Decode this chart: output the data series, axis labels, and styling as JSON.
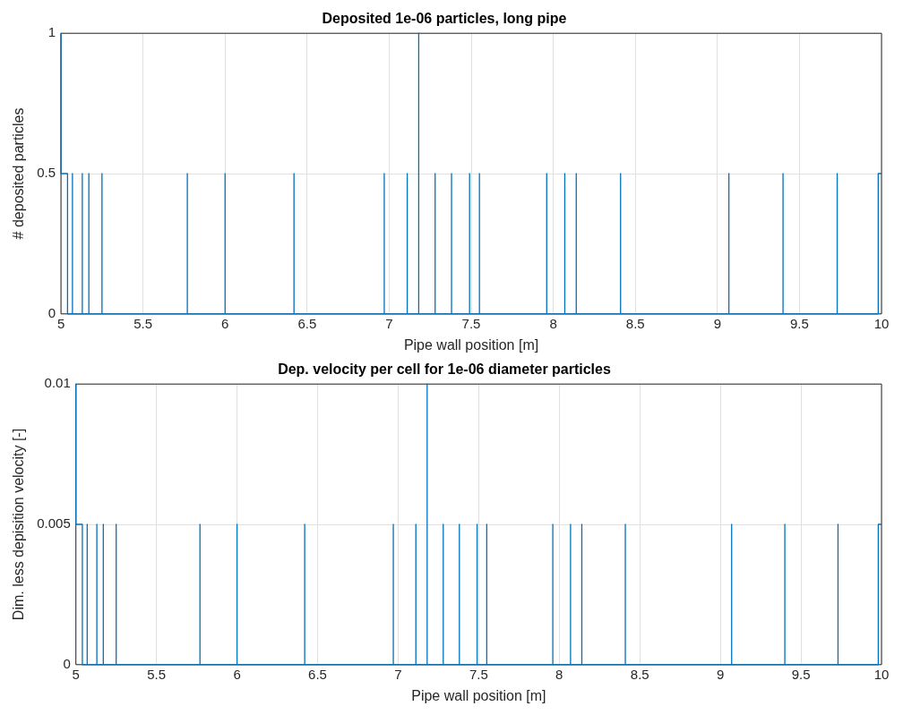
{
  "chart_data": [
    {
      "type": "line",
      "title": "Deposited 1e-06 particles, long pipe",
      "xlabel": "Pipe wall position [m]",
      "ylabel": "# deposited particles",
      "xlim": [
        5,
        10
      ],
      "xticks": [
        5,
        5.5,
        6,
        6.5,
        7,
        7.5,
        8,
        8.5,
        9,
        9.5,
        10
      ],
      "ylim": [
        0,
        1
      ],
      "yticks": [
        0,
        0.5,
        1
      ],
      "grid": true,
      "marker": "none",
      "series": [
        {
          "color": "#0072bd",
          "x": [
            5,
            5,
            5.04,
            5.04,
            5.07,
            5.07,
            5.07,
            5.13,
            5.13,
            5.13,
            5.17,
            5.17,
            5.17,
            5.25,
            5.25,
            5.25,
            5.77,
            5.77,
            5.77,
            6,
            6,
            6,
            6.42,
            6.42,
            6.42,
            6.97,
            6.97,
            6.97,
            7.11,
            7.11,
            7.11,
            7.18,
            7.18,
            7.18,
            7.28,
            7.28,
            7.28,
            7.38,
            7.38,
            7.38,
            7.49,
            7.49,
            7.49,
            7.55,
            7.55,
            7.55,
            7.96,
            7.96,
            7.96,
            8.07,
            8.07,
            8.07,
            8.14,
            8.14,
            8.14,
            8.41,
            8.41,
            8.41,
            9.07,
            9.07,
            9.07,
            9.4,
            9.4,
            9.4,
            9.73,
            9.73,
            9.73,
            9.98,
            9.98,
            10
          ],
          "values": [
            1,
            0.5,
            0.5,
            0,
            0,
            0.5,
            0,
            0,
            0.5,
            0,
            0,
            0.5,
            0,
            0,
            0.5,
            0,
            0,
            0.5,
            0,
            0,
            0.5,
            0,
            0,
            0.5,
            0,
            0,
            0.5,
            0,
            0,
            0.5,
            0,
            0,
            1,
            0,
            0,
            0.5,
            0,
            0,
            0.5,
            0,
            0,
            0.5,
            0,
            0,
            0.5,
            0,
            0,
            0.5,
            0,
            0,
            0.5,
            0,
            0,
            0.5,
            0,
            0,
            0.5,
            0,
            0,
            0.5,
            0,
            0,
            0.5,
            0,
            0,
            0.5,
            0,
            0,
            0.5,
            0.5
          ]
        }
      ]
    },
    {
      "type": "line",
      "title": "Dep. velocity per cell for 1e-06 diameter particles",
      "xlabel": "Pipe wall position [m]",
      "ylabel": "Dim. less depisition velocity [-]",
      "xlim": [
        5,
        10
      ],
      "xticks": [
        5,
        5.5,
        6,
        6.5,
        7,
        7.5,
        8,
        8.5,
        9,
        9.5,
        10
      ],
      "ylim": [
        0,
        0.01
      ],
      "yticks": [
        0,
        0.005,
        0.01
      ],
      "grid": true,
      "marker": "none",
      "series": [
        {
          "color": "#0072bd",
          "x": [
            5,
            5,
            5.04,
            5.04,
            5.07,
            5.07,
            5.07,
            5.13,
            5.13,
            5.13,
            5.17,
            5.17,
            5.17,
            5.25,
            5.25,
            5.25,
            5.77,
            5.77,
            5.77,
            6,
            6,
            6,
            6.42,
            6.42,
            6.42,
            6.97,
            6.97,
            6.97,
            7.11,
            7.11,
            7.11,
            7.18,
            7.18,
            7.18,
            7.28,
            7.28,
            7.28,
            7.38,
            7.38,
            7.38,
            7.49,
            7.49,
            7.49,
            7.55,
            7.55,
            7.55,
            7.96,
            7.96,
            7.96,
            8.07,
            8.07,
            8.07,
            8.14,
            8.14,
            8.14,
            8.41,
            8.41,
            8.41,
            9.07,
            9.07,
            9.07,
            9.4,
            9.4,
            9.4,
            9.73,
            9.73,
            9.73,
            9.98,
            9.98,
            10
          ],
          "values": [
            0.01,
            0.005,
            0.005,
            0,
            0,
            0.005,
            0,
            0,
            0.005,
            0,
            0,
            0.005,
            0,
            0,
            0.005,
            0,
            0,
            0.005,
            0,
            0,
            0.005,
            0,
            0,
            0.005,
            0,
            0,
            0.005,
            0,
            0,
            0.005,
            0,
            0,
            0.01,
            0,
            0,
            0.005,
            0,
            0,
            0.005,
            0,
            0,
            0.005,
            0,
            0,
            0.005,
            0,
            0,
            0.005,
            0,
            0,
            0.005,
            0,
            0,
            0.005,
            0,
            0,
            0.005,
            0,
            0,
            0.005,
            0,
            0,
            0.005,
            0,
            0,
            0.005,
            0,
            0,
            0.005,
            0.005
          ]
        }
      ]
    }
  ]
}
